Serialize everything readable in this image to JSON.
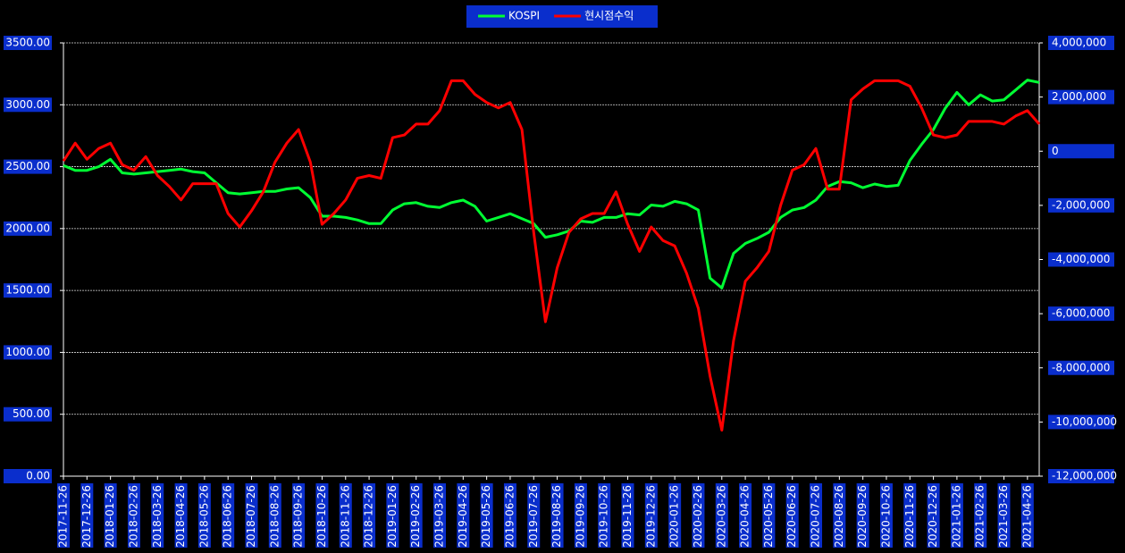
{
  "chart_data": {
    "type": "line",
    "x": [
      "2017-11-26",
      null,
      "2017-12-26",
      null,
      "2018-01-26",
      null,
      "2018-02-26",
      null,
      "2018-03-26",
      null,
      "2018-04-26",
      null,
      "2018-05-26",
      null,
      "2018-06-26",
      null,
      "2018-07-26",
      null,
      "2018-08-26",
      null,
      "2018-09-26",
      null,
      "2018-10-26",
      null,
      "2018-11-26",
      null,
      "2018-12-26",
      null,
      "2019-01-26",
      null,
      "2019-02-26",
      null,
      "2019-03-26",
      null,
      "2019-04-26",
      null,
      "2019-05-26",
      null,
      "2019-06-26",
      null,
      "2019-07-26",
      null,
      "2019-08-26",
      null,
      "2019-09-26",
      null,
      "2019-10-26",
      null,
      "2019-11-26",
      null,
      "2019-12-26",
      null,
      "2020-01-26",
      null,
      "2020-02-26",
      null,
      "2020-03-26",
      null,
      "2020-04-26",
      null,
      "2020-05-26",
      null,
      "2020-06-26",
      null,
      "2020-07-26",
      null,
      "2020-08-26",
      null,
      "2020-09-26",
      null,
      "2020-10-26",
      null,
      "2020-11-26",
      null,
      "2020-12-26",
      null,
      "2021-01-26",
      null,
      "2021-02-26",
      null,
      "2021-03-26",
      null,
      "2021-04-26",
      null
    ],
    "series": [
      {
        "name": "KOSPI",
        "color": "#00ff33",
        "values": [
          2510,
          2470,
          2470,
          2500,
          2560,
          2450,
          2440,
          2450,
          2460,
          2470,
          2480,
          2460,
          2450,
          2370,
          2290,
          2280,
          2290,
          2300,
          2300,
          2320,
          2330,
          2250,
          2100,
          2100,
          2090,
          2070,
          2040,
          2040,
          2150,
          2200,
          2210,
          2180,
          2170,
          2210,
          2230,
          2180,
          2060,
          2090,
          2120,
          2080,
          2040,
          1930,
          1950,
          1980,
          2060,
          2050,
          2090,
          2090,
          2120,
          2110,
          2190,
          2180,
          2220,
          2200,
          2150,
          1600,
          1520,
          1800,
          1880,
          1920,
          1970,
          2090,
          2150,
          2170,
          2230,
          2340,
          2380,
          2370,
          2330,
          2360,
          2340,
          2350,
          2550,
          2680,
          2800,
          2970,
          3100,
          3000,
          3080,
          3030,
          3040,
          3120,
          3200,
          3180
        ]
      },
      {
        "name": "현시점수익",
        "color": "#ff0000",
        "axis": "y2",
        "values": [
          -360000,
          300000,
          -300000,
          100000,
          300000,
          -500000,
          -700000,
          -200000,
          -900000,
          -1300000,
          -1800000,
          -1200000,
          -1200000,
          -1200000,
          -2300000,
          -2800000,
          -2200000,
          -1500000,
          -400000,
          300000,
          800000,
          -400000,
          -2700000,
          -2300000,
          -1800000,
          -1000000,
          -900000,
          -1000000,
          500000,
          600000,
          1000000,
          1000000,
          1500000,
          2600000,
          2600000,
          2100000,
          1800000,
          1600000,
          1800000,
          800000,
          -3000000,
          -6300000,
          -4300000,
          -3000000,
          -2500000,
          -2300000,
          -2300000,
          -1500000,
          -2700000,
          -3700000,
          -2800000,
          -3300000,
          -3500000,
          -4500000,
          -5800000,
          -8300000,
          -10300000,
          -7000000,
          -4800000,
          -4300000,
          -3700000,
          -2000000,
          -700000,
          -500000,
          100000,
          -1400000,
          -1400000,
          1900000,
          2300000,
          2600000,
          2600000,
          2600000,
          2400000,
          1600000,
          600000,
          500000,
          600000,
          1100000,
          1100000,
          1100000,
          1000000,
          1300000,
          1500000,
          1000000
        ]
      }
    ],
    "ylim": [
      0,
      3500
    ],
    "yticks": [
      {
        "value": 0,
        "label": "0.00"
      },
      {
        "value": 500,
        "label": "500.00"
      },
      {
        "value": 1000,
        "label": "1000.00"
      },
      {
        "value": 1500,
        "label": "1500.00"
      },
      {
        "value": 2000,
        "label": "2000.00"
      },
      {
        "value": 2500,
        "label": "2500.00"
      },
      {
        "value": 3000,
        "label": "3000.00"
      },
      {
        "value": 3500,
        "label": "3500.00"
      }
    ],
    "y2lim": [
      -12000000,
      4000000
    ],
    "y2ticks": [
      {
        "value": -12000000,
        "label": "-12,000,000"
      },
      {
        "value": -10000000,
        "label": "-10,000,000"
      },
      {
        "value": -8000000,
        "label": "-8,000,000"
      },
      {
        "value": -6000000,
        "label": "-6,000,000"
      },
      {
        "value": -4000000,
        "label": "-4,000,000"
      },
      {
        "value": -2000000,
        "label": "-2,000,000"
      },
      0,
      {
        "value": 2000000,
        "label": "2,000,000"
      },
      {
        "value": 4000000,
        "label": "4,000,000"
      }
    ],
    "grid": true,
    "legend": "top"
  }
}
